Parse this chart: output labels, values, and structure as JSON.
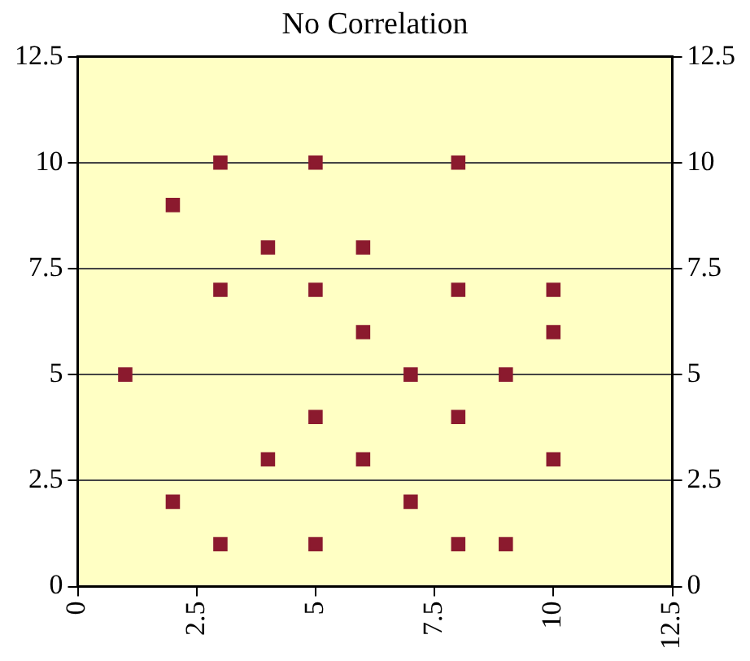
{
  "chart_data": {
    "type": "scatter",
    "title": "No Correlation",
    "x": [
      3,
      5,
      8,
      2,
      4,
      6,
      3,
      5,
      8,
      10,
      6,
      10,
      1,
      7,
      9,
      5,
      8,
      4,
      6,
      10,
      2,
      7,
      3,
      5,
      8,
      9
    ],
    "series": [
      {
        "color": "#8b1a2e",
        "values": [
          10,
          10,
          10,
          9,
          8,
          8,
          7,
          7,
          7,
          7,
          6,
          6,
          5,
          5,
          5,
          4,
          4,
          3,
          3,
          3,
          2,
          2,
          1,
          1,
          1,
          1
        ]
      }
    ],
    "xlim": [
      0,
      12.5
    ],
    "xticks": [
      0,
      2.5,
      5,
      7.5,
      10,
      12.5
    ],
    "ylim": [
      0,
      12.5
    ],
    "yticks": [
      0,
      2.5,
      5,
      7.5,
      10,
      12.5
    ],
    "y2lim": [
      0,
      12.5
    ],
    "y2ticks": [
      0,
      2.5,
      5,
      7.5,
      10,
      12.5
    ],
    "grid": "y",
    "marker": "square",
    "legend": false
  }
}
